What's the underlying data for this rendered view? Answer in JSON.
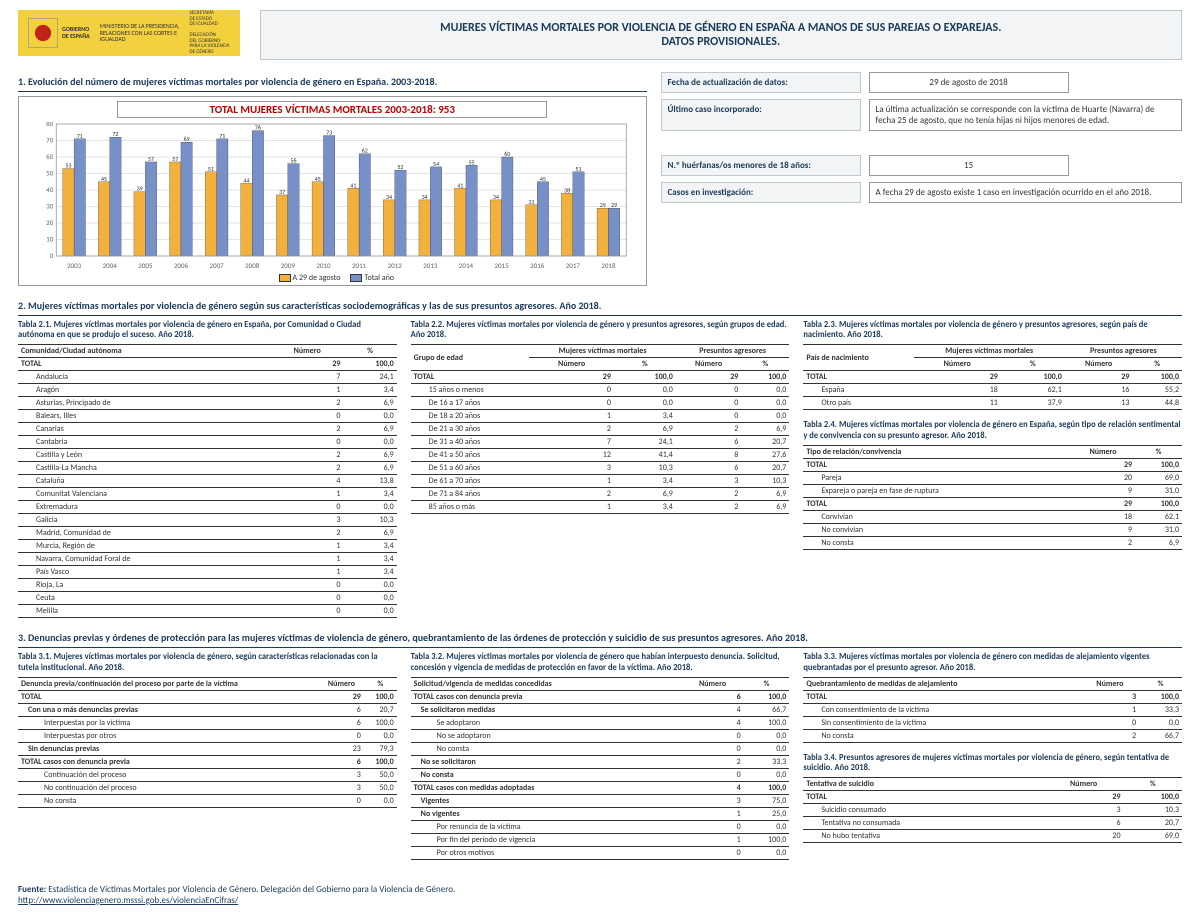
{
  "logo": {
    "l1": "GOBIERNO",
    "l2": "DE ESPAÑA",
    "l3": "MINISTERIO DE LA PRESIDENCIA,",
    "l4": "RELACIONES CON LAS CORTES E",
    "l5": "IGUALDAD",
    "l6": "SECRETARÍA",
    "l7": "DE ESTADO",
    "l8": "DE IGUALDAD",
    "l9": "DELEGACIÓN",
    "l10": "DEL GOBIERNO",
    "l11": "PARA LA VIOLENCIA",
    "l12": "DE GÉNERO"
  },
  "title_l1": "MUJERES VÍCTIMAS MORTALES POR VIOLENCIA DE GÉNERO EN ESPAÑA A MANOS DE SUS PAREJAS O EXPAREJAS.",
  "title_l2": "DATOS PROVISIONALES.",
  "sec1": "1. Evolución del número de mujeres víctimas mortales por violencia de género en España. 2003-2018.",
  "chart": {
    "title": "TOTAL MUJERES VÍCTIMAS MORTALES 2003-2018: 953",
    "type": "bar",
    "ylim": [
      0,
      80
    ],
    "yticks": [
      0,
      10,
      20,
      30,
      40,
      50,
      60,
      70,
      80
    ],
    "years": [
      "2003",
      "2004",
      "2005",
      "2006",
      "2007",
      "2008",
      "2009",
      "2010",
      "2011",
      "2012",
      "2013",
      "2014",
      "2015",
      "2016",
      "2017",
      "2018"
    ],
    "s1_label": "A 29 de agosto",
    "s2_label": "Total año",
    "s1_color": "#f2b03d",
    "s2_color": "#7790c8",
    "grid_color": "#c8c8c8",
    "text_color": "#666666",
    "border_color": "#999999",
    "s1": [
      53,
      45,
      39,
      57,
      51,
      44,
      37,
      45,
      41,
      34,
      34,
      41,
      34,
      31,
      38,
      29
    ],
    "s2": [
      71,
      72,
      57,
      69,
      71,
      76,
      56,
      73,
      62,
      52,
      54,
      55,
      60,
      45,
      51,
      29
    ]
  },
  "info": {
    "r1l": "Fecha de actualización de datos:",
    "r1v": "29 de agosto de 2018",
    "r2l": "Último caso incorporado:",
    "r2v": "La última actualización se corresponde con la víctima de Huarte (Navarra) de fecha 25 de agosto, que no tenía hijas ni hijos menores de edad.",
    "r3l": "N.º huérfanas/os menores de 18 años:",
    "r3v": "15",
    "r4l": "Casos en investigación:",
    "r4v": "A fecha  29 de  agosto  existe 1 caso en investigación ocurrido en el año 2018."
  },
  "sec2": "2. Mujeres víctimas mortales por violencia de género según sus características sociodemográficas y las de sus presuntos agresores. Año 2018.",
  "t21": {
    "title": "Tabla 2.1. Mujeres víctimas mortales por violencia de género en España, por Comunidad o Ciudad autónoma en que se produjo el suceso. Año 2018.",
    "h1": "Comunidad/Ciudad autónoma",
    "h2": "Número",
    "h3": "%",
    "total": [
      "TOTAL",
      "29",
      "100,0"
    ],
    "rows": [
      [
        "Andalucía",
        "7",
        "24,1"
      ],
      [
        "Aragón",
        "1",
        "3,4"
      ],
      [
        "Asturias, Principado de",
        "2",
        "6,9"
      ],
      [
        "Balears, Illes",
        "0",
        "0,0"
      ],
      [
        "Canarias",
        "2",
        "6,9"
      ],
      [
        "Cantabria",
        "0",
        "0,0"
      ],
      [
        "Castilla y León",
        "2",
        "6,9"
      ],
      [
        "Castilla-La Mancha",
        "2",
        "6,9"
      ],
      [
        "Cataluña",
        "4",
        "13,8"
      ],
      [
        "Comunitat Valenciana",
        "1",
        "3,4"
      ],
      [
        "Extremadura",
        "0",
        "0,0"
      ],
      [
        "Galicia",
        "3",
        "10,3"
      ],
      [
        "Madrid, Comunidad de",
        "2",
        "6,9"
      ],
      [
        "Murcia, Región de",
        "1",
        "3,4"
      ],
      [
        "Navarra, Comunidad Foral de",
        "1",
        "3,4"
      ],
      [
        "País Vasco",
        "1",
        "3,4"
      ],
      [
        "Rioja, La",
        "0",
        "0,0"
      ],
      [
        "Ceuta",
        "0",
        "0,0"
      ],
      [
        "Melilla",
        "0",
        "0,0"
      ]
    ]
  },
  "t22": {
    "title": "Tabla 2.2. Mujeres víctimas mortales por violencia de género y presuntos agresores, según grupos de edad. Año 2018.",
    "h1": "Grupo de edad",
    "gh1": "Mujeres víctimas mortales",
    "gh2": "Presuntos agresores",
    "h2": "Número",
    "h3": "%",
    "h4": "Número",
    "h5": "%",
    "total": [
      "TOTAL",
      "29",
      "100,0",
      "29",
      "100,0"
    ],
    "rows": [
      [
        "15 años o menos",
        "0",
        "0,0",
        "0",
        "0,0"
      ],
      [
        "De 16 a 17 años",
        "0",
        "0,0",
        "0",
        "0,0"
      ],
      [
        "De 18 a 20 años",
        "1",
        "3,4",
        "0",
        "0,0"
      ],
      [
        "De 21 a 30 años",
        "2",
        "6,9",
        "2",
        "6,9"
      ],
      [
        "De 31 a 40 años",
        "7",
        "24,1",
        "6",
        "20,7"
      ],
      [
        "De 41 a 50 años",
        "12",
        "41,4",
        "8",
        "27,6"
      ],
      [
        "De 51 a 60 años",
        "3",
        "10,3",
        "6",
        "20,7"
      ],
      [
        "De 61 a 70 años",
        "1",
        "3,4",
        "3",
        "10,3"
      ],
      [
        "De 71 a 84 años",
        "2",
        "6,9",
        "2",
        "6,9"
      ],
      [
        "85 años o más",
        "1",
        "3,4",
        "2",
        "6,9"
      ]
    ]
  },
  "t23": {
    "title": "Tabla 2.3. Mujeres víctimas mortales por violencia de género y presuntos agresores, según país de nacimiento. Año 2018.",
    "h1": "País de nacimiento",
    "gh1": "Mujeres víctimas mortales",
    "gh2": "Presuntos agresores",
    "h2": "Número",
    "h3": "%",
    "h4": "Número",
    "h5": "%",
    "total": [
      "TOTAL",
      "29",
      "100,0",
      "29",
      "100,0"
    ],
    "rows": [
      [
        "España",
        "18",
        "62,1",
        "16",
        "55,2"
      ],
      [
        "Otro país",
        "11",
        "37,9",
        "13",
        "44,8"
      ]
    ]
  },
  "t24": {
    "title": "Tabla 2.4. Mujeres víctimas mortales por violencia de género en España, según tipo de relación sentimental y de convivencia con su presunto agresor. Año 2018.",
    "h1": "Tipo de relación/convivencia",
    "h2": "Número",
    "h3": "%",
    "t1": [
      "TOTAL",
      "29",
      "100,0"
    ],
    "r1": [
      [
        "Pareja",
        "20",
        "69,0"
      ],
      [
        "Expareja o pareja en fase de ruptura",
        "9",
        "31,0"
      ]
    ],
    "t2": [
      "TOTAL",
      "29",
      "100,0"
    ],
    "r2": [
      [
        "Convivían",
        "18",
        "62,1"
      ],
      [
        "No convivían",
        "9",
        "31,0"
      ],
      [
        "No consta",
        "2",
        "6,9"
      ]
    ]
  },
  "sec3": "3. Denuncias previas y órdenes de protección para las mujeres víctimas de violencia de género, quebrantamiento de las órdenes de protección y suicidio de sus presuntos agresores. Año 2018.",
  "t31": {
    "title": "Tabla 3.1. Mujeres víctimas mortales por violencia de género, según características relacionadas con la tutela institucional. Año 2018.",
    "h1": "Denuncia previa/continuación del proceso por parte de la víctima",
    "h2": "Número",
    "h3": "%",
    "rows": [
      [
        "tot",
        "TOTAL",
        "29",
        "100,0"
      ],
      [
        "b",
        "Con una o más denuncias previas",
        "6",
        "20,7"
      ],
      [
        "i",
        "Interpuestas por la víctima",
        "6",
        "100,0"
      ],
      [
        "i",
        "Interpuestas por otros",
        "0",
        "0,0"
      ],
      [
        "b",
        "Sin denuncias previas",
        "23",
        "79,3"
      ],
      [
        "tot",
        "TOTAL casos con denuncia previa",
        "6",
        "100,0"
      ],
      [
        "i",
        "Continuación del proceso",
        "3",
        "50,0"
      ],
      [
        "i",
        "No continuación del proceso",
        "3",
        "50,0"
      ],
      [
        "i",
        "No consta",
        "0",
        "0,0"
      ]
    ]
  },
  "t32": {
    "title": "Tabla 3.2.  Mujeres víctimas mortales por violencia de género que habían interpuesto denuncia. Solicitud, concesión y vigencia de medidas de protección en favor de la víctima. Año 2018.",
    "h1": "Solicitud/vigencia de medidas concedidas",
    "h2": "Número",
    "h3": "%",
    "rows": [
      [
        "tot",
        "TOTAL casos con denuncia previa",
        "6",
        "100,0"
      ],
      [
        "b",
        "Se solicitaron medidas",
        "4",
        "66,7"
      ],
      [
        "i",
        "Se adoptaron",
        "4",
        "100,0"
      ],
      [
        "i",
        "No se adoptaron",
        "0",
        "0,0"
      ],
      [
        "i",
        "No consta",
        "0",
        "0,0"
      ],
      [
        "b",
        "No se solicitaron",
        "2",
        "33,3"
      ],
      [
        "b",
        "No consta",
        "0",
        "0,0"
      ],
      [
        "tot",
        "TOTAL casos con medidas adoptadas",
        "4",
        "100,0"
      ],
      [
        "b",
        "Vigentes",
        "3",
        "75,0"
      ],
      [
        "b",
        "No vigentes",
        "1",
        "25,0"
      ],
      [
        "i",
        "Por renuncia de la víctima",
        "0",
        "0,0"
      ],
      [
        "i",
        "Por fin del período de vigencia",
        "1",
        "100,0"
      ],
      [
        "i",
        "Por otros motivos",
        "0",
        "0,0"
      ]
    ]
  },
  "t33": {
    "title": "Tabla 3.3. Mujeres víctimas mortales por violencia de género con medidas de alejamiento vigentes quebrantadas por el presunto agresor. Año 2018.",
    "h1": "Quebrantamiento de medidas de alejamiento",
    "h2": "Número",
    "h3": "%",
    "total": [
      "TOTAL",
      "3",
      "100,0"
    ],
    "rows": [
      [
        "Con consentimiento de la víctima",
        "1",
        "33,3"
      ],
      [
        "Sin consentimiento de la víctima",
        "0",
        "0,0"
      ],
      [
        "No consta",
        "2",
        "66,7"
      ]
    ]
  },
  "t34": {
    "title": "Tabla 3.4. Presuntos agresores de mujeres víctimas mortales por violencia de género, según tentativa de suicidio. Año 2018.",
    "h1": "Tentativa de suicidio",
    "h2": "Número",
    "h3": "%",
    "total": [
      "TOTAL",
      "29",
      "100,0"
    ],
    "rows": [
      [
        "Suicidio consumado",
        "3",
        "10,3"
      ],
      [
        "Tentativa no consumada",
        "6",
        "20,7"
      ],
      [
        "No hubo tentativa",
        "20",
        "69,0"
      ]
    ]
  },
  "footer": {
    "lab": "Fuente:",
    "txt": " Estadística de Víctimas Mortales por Violencia de Género. Delegación del Gobierno para la Violencia de Género.",
    "url": "http://www.violenciagenero.msssi.gob.es/violenciaEnCifras/"
  }
}
